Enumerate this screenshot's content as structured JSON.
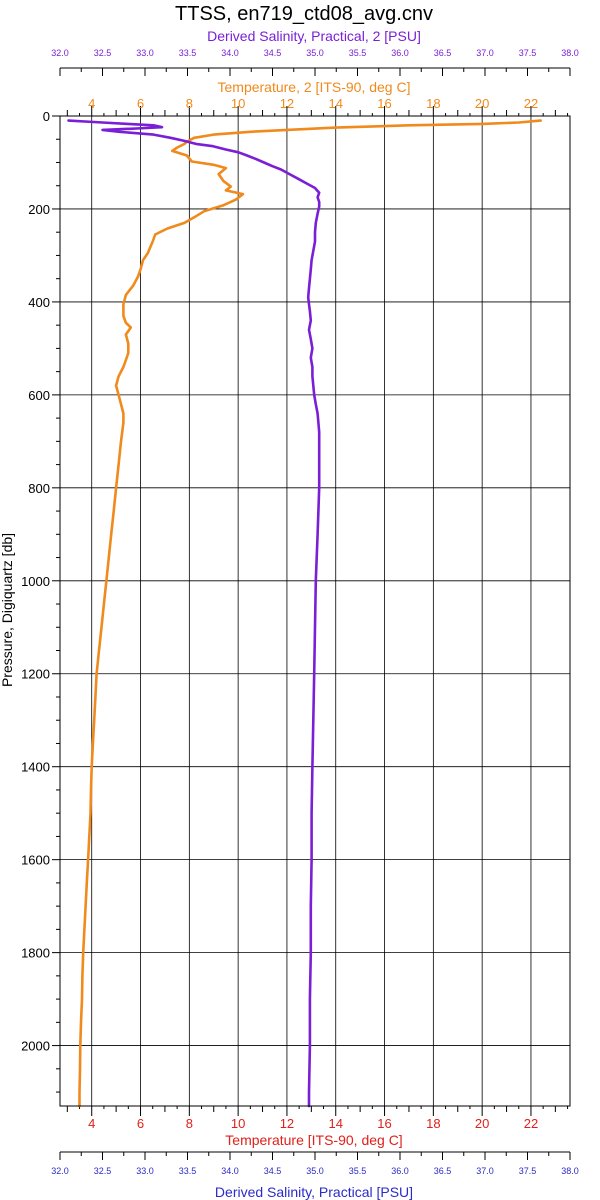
{
  "chart_data": {
    "type": "line",
    "title": "TTSS, en719_ctd08_avg.cnv",
    "y_axis": {
      "label": "Pressure, Digiquartz [db]",
      "range": [
        0,
        2130
      ],
      "reversed": true,
      "ticks": [
        0,
        200,
        400,
        600,
        800,
        1000,
        1200,
        1400,
        1600,
        1800,
        2000
      ]
    },
    "top_salinity_axis": {
      "label": "Derived Salinity, Practical, 2 [PSU]",
      "range": [
        32.0,
        38.0
      ],
      "ticks": [
        "32.0",
        "32.5",
        "33.0",
        "33.5",
        "34.0",
        "34.5",
        "35.0",
        "35.5",
        "36.0",
        "36.5",
        "37.0",
        "37.5",
        "38.0"
      ],
      "color": "#7a1fd6"
    },
    "top_temperature_axis": {
      "label": "Temperature, 2 [ITS-90, deg C]",
      "range": [
        2.7,
        23.6
      ],
      "ticks": [
        "4",
        "6",
        "8",
        "10",
        "12",
        "14",
        "16",
        "18",
        "20",
        "22"
      ],
      "color": "#f08a1c"
    },
    "bottom_temperature_axis": {
      "label": "Temperature [ITS-90, deg C]",
      "range": [
        2.7,
        23.6
      ],
      "ticks": [
        "4",
        "6",
        "8",
        "10",
        "12",
        "14",
        "16",
        "18",
        "20",
        "22"
      ],
      "color": "#e0201a"
    },
    "bottom_salinity_axis": {
      "label": "Derived Salinity, Practical [PSU]",
      "range": [
        32.0,
        38.0
      ],
      "ticks": [
        "32.0",
        "32.5",
        "33.0",
        "33.5",
        "34.0",
        "34.5",
        "35.0",
        "35.5",
        "36.0",
        "36.5",
        "37.0",
        "37.5",
        "38.0"
      ],
      "color": "#2b2bc8"
    },
    "grid": true,
    "series": [
      {
        "axis": "temperature",
        "color": "#f08a1c",
        "points": [
          [
            22.4,
            10
          ],
          [
            21.5,
            14
          ],
          [
            20.0,
            17
          ],
          [
            17.0,
            20
          ],
          [
            14.0,
            25
          ],
          [
            12.0,
            30
          ],
          [
            10.5,
            34
          ],
          [
            9.0,
            40
          ],
          [
            8.2,
            47
          ],
          [
            7.9,
            55
          ],
          [
            7.8,
            60
          ],
          [
            7.5,
            68
          ],
          [
            7.3,
            75
          ],
          [
            7.9,
            85
          ],
          [
            8.1,
            98
          ],
          [
            9.0,
            105
          ],
          [
            9.5,
            112
          ],
          [
            9.2,
            125
          ],
          [
            9.4,
            140
          ],
          [
            9.7,
            152
          ],
          [
            9.5,
            160
          ],
          [
            10.2,
            168
          ],
          [
            9.9,
            180
          ],
          [
            9.4,
            192
          ],
          [
            8.6,
            205
          ],
          [
            8.2,
            218
          ],
          [
            7.8,
            230
          ],
          [
            7.1,
            242
          ],
          [
            6.6,
            255
          ],
          [
            6.5,
            270
          ],
          [
            6.4,
            282
          ],
          [
            6.3,
            295
          ],
          [
            6.1,
            310
          ],
          [
            6.0,
            330
          ],
          [
            5.9,
            345
          ],
          [
            5.7,
            365
          ],
          [
            5.4,
            385
          ],
          [
            5.3,
            405
          ],
          [
            5.3,
            430
          ],
          [
            5.4,
            445
          ],
          [
            5.6,
            455
          ],
          [
            5.4,
            470
          ],
          [
            5.5,
            490
          ],
          [
            5.5,
            510
          ],
          [
            5.4,
            525
          ],
          [
            5.3,
            540
          ],
          [
            5.1,
            560
          ],
          [
            5.0,
            580
          ],
          [
            5.1,
            600
          ],
          [
            5.2,
            620
          ],
          [
            5.3,
            640
          ],
          [
            5.3,
            660
          ],
          [
            5.2,
            700
          ],
          [
            5.1,
            750
          ],
          [
            5.0,
            800
          ],
          [
            4.9,
            850
          ],
          [
            4.8,
            900
          ],
          [
            4.7,
            950
          ],
          [
            4.6,
            1000
          ],
          [
            4.5,
            1050
          ],
          [
            4.4,
            1100
          ],
          [
            4.3,
            1150
          ],
          [
            4.2,
            1200
          ],
          [
            4.15,
            1250
          ],
          [
            4.1,
            1300
          ],
          [
            4.05,
            1350
          ],
          [
            4.0,
            1400
          ],
          [
            3.97,
            1450
          ],
          [
            3.95,
            1500
          ],
          [
            3.9,
            1550
          ],
          [
            3.85,
            1600
          ],
          [
            3.8,
            1650
          ],
          [
            3.75,
            1700
          ],
          [
            3.7,
            1750
          ],
          [
            3.65,
            1800
          ],
          [
            3.62,
            1850
          ],
          [
            3.6,
            1900
          ],
          [
            3.56,
            1950
          ],
          [
            3.53,
            2000
          ],
          [
            3.52,
            2050
          ],
          [
            3.5,
            2100
          ],
          [
            3.5,
            2130
          ]
        ]
      },
      {
        "axis": "salinity",
        "color": "#7a1fd6",
        "points": [
          [
            32.1,
            10
          ],
          [
            32.5,
            14
          ],
          [
            32.8,
            17
          ],
          [
            33.1,
            20
          ],
          [
            33.2,
            24
          ],
          [
            32.9,
            27
          ],
          [
            32.5,
            30
          ],
          [
            32.7,
            34
          ],
          [
            33.1,
            40
          ],
          [
            33.3,
            47
          ],
          [
            33.45,
            53
          ],
          [
            33.6,
            60
          ],
          [
            33.8,
            65
          ],
          [
            33.95,
            72
          ],
          [
            34.1,
            78
          ],
          [
            34.2,
            85
          ],
          [
            34.3,
            92
          ],
          [
            34.4,
            100
          ],
          [
            34.5,
            108
          ],
          [
            34.6,
            115
          ],
          [
            34.7,
            125
          ],
          [
            34.8,
            135
          ],
          [
            34.9,
            145
          ],
          [
            35.0,
            155
          ],
          [
            35.05,
            165
          ],
          [
            35.03,
            175
          ],
          [
            35.05,
            185
          ],
          [
            35.05,
            195
          ],
          [
            35.03,
            210
          ],
          [
            35.01,
            230
          ],
          [
            35.0,
            250
          ],
          [
            35.0,
            270
          ],
          [
            34.98,
            290
          ],
          [
            34.96,
            310
          ],
          [
            34.95,
            330
          ],
          [
            34.94,
            350
          ],
          [
            34.93,
            370
          ],
          [
            34.92,
            390
          ],
          [
            34.93,
            405
          ],
          [
            34.94,
            420
          ],
          [
            34.95,
            440
          ],
          [
            34.93,
            460
          ],
          [
            34.95,
            480
          ],
          [
            34.97,
            500
          ],
          [
            34.95,
            520
          ],
          [
            34.97,
            540
          ],
          [
            34.97,
            560
          ],
          [
            34.98,
            580
          ],
          [
            34.99,
            600
          ],
          [
            35.01,
            620
          ],
          [
            35.03,
            640
          ],
          [
            35.04,
            660
          ],
          [
            35.05,
            680
          ],
          [
            35.05,
            700
          ],
          [
            35.05,
            750
          ],
          [
            35.05,
            800
          ],
          [
            35.04,
            850
          ],
          [
            35.03,
            900
          ],
          [
            35.02,
            950
          ],
          [
            35.01,
            1000
          ],
          [
            35.0,
            1100
          ],
          [
            34.99,
            1200
          ],
          [
            34.98,
            1300
          ],
          [
            34.97,
            1400
          ],
          [
            34.96,
            1500
          ],
          [
            34.96,
            1600
          ],
          [
            34.95,
            1700
          ],
          [
            34.95,
            1800
          ],
          [
            34.94,
            1900
          ],
          [
            34.94,
            2000
          ],
          [
            34.93,
            2100
          ],
          [
            34.93,
            2130
          ]
        ]
      }
    ]
  }
}
